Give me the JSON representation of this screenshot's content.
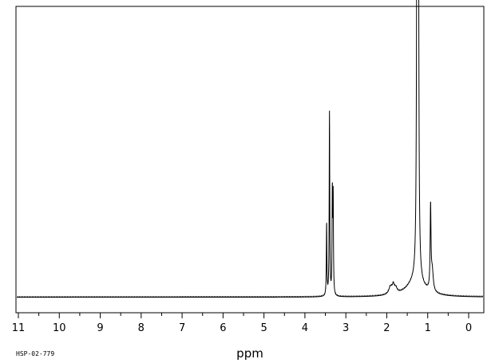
{
  "chart_data": {
    "type": "line",
    "xlabel": "ppm",
    "x_reversed": true,
    "xlim": [
      11,
      0
    ],
    "ylim": [
      0,
      100
    ],
    "grid": false,
    "tick_labels": [
      "11",
      "10",
      "9",
      "8",
      "7",
      "6",
      "5",
      "4",
      "3",
      "2",
      "1",
      "0"
    ],
    "tick_values": [
      11,
      10,
      9,
      8,
      7,
      6,
      5,
      4,
      3,
      2,
      1,
      0
    ],
    "minor_tick_step": 0.5,
    "sample_id": "HSP-02-779",
    "baseline": 6,
    "peaks": [
      {
        "ppm": 3.47,
        "height": 28,
        "width": 0.008
      },
      {
        "ppm": 3.4,
        "height": 71,
        "width": 0.008
      },
      {
        "ppm": 3.33,
        "height": 39,
        "width": 0.008
      },
      {
        "ppm": 3.31,
        "height": 37,
        "width": 0.008
      },
      {
        "ppm": 1.91,
        "height": 3,
        "width": 0.05
      },
      {
        "ppm": 1.84,
        "height": 3,
        "width": 0.03
      },
      {
        "ppm": 1.78,
        "height": 2,
        "width": 0.04
      },
      {
        "ppm": 1.3,
        "height": 6,
        "width": 0.25
      },
      {
        "ppm": 1.26,
        "height": 200,
        "width": 0.012
      },
      {
        "ppm": 1.23,
        "height": 185,
        "width": 0.012
      },
      {
        "ppm": 0.93,
        "height": 32,
        "width": 0.012
      },
      {
        "ppm": 0.89,
        "height": 8,
        "width": 0.03
      }
    ]
  }
}
